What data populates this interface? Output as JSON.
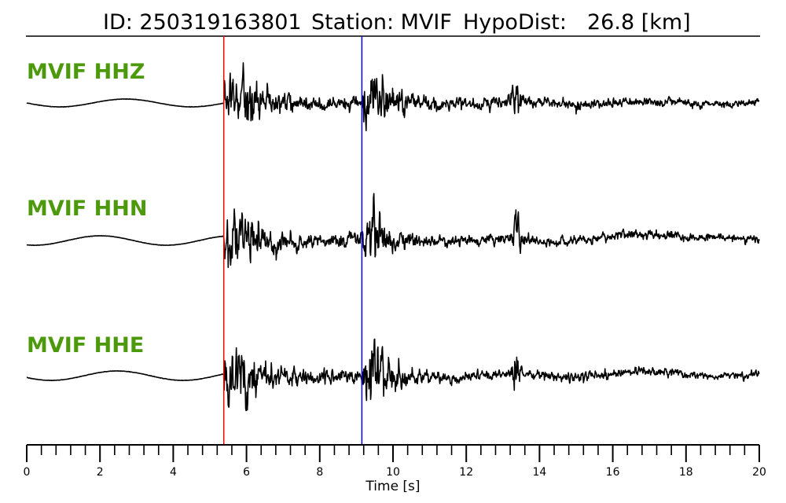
{
  "title": {
    "id_label": "ID: 250319163801",
    "station_label": "Station: MVIF",
    "hypodist_label": "HypoDist:",
    "hypodist_value": "26.8 [km]"
  },
  "colors": {
    "label": "#4c9a0c",
    "p_pick": "#ff0000",
    "s_pick": "#0000ff",
    "trace": "#000000"
  },
  "chart_data": {
    "type": "line",
    "xlabel": "Time [s]",
    "xlim": [
      0,
      20
    ],
    "x_major_ticks": [
      0,
      2,
      4,
      6,
      8,
      10,
      12,
      14,
      16,
      18,
      20
    ],
    "x_minor_step": 0.4,
    "picks": [
      {
        "time": 5.38,
        "color": "#ff0000"
      },
      {
        "time": 9.15,
        "color": "#0000ff"
      }
    ],
    "channels": [
      {
        "label": "MVIF HHZ"
      },
      {
        "label": "MVIF HHN"
      },
      {
        "label": "MVIF HHE"
      }
    ]
  }
}
